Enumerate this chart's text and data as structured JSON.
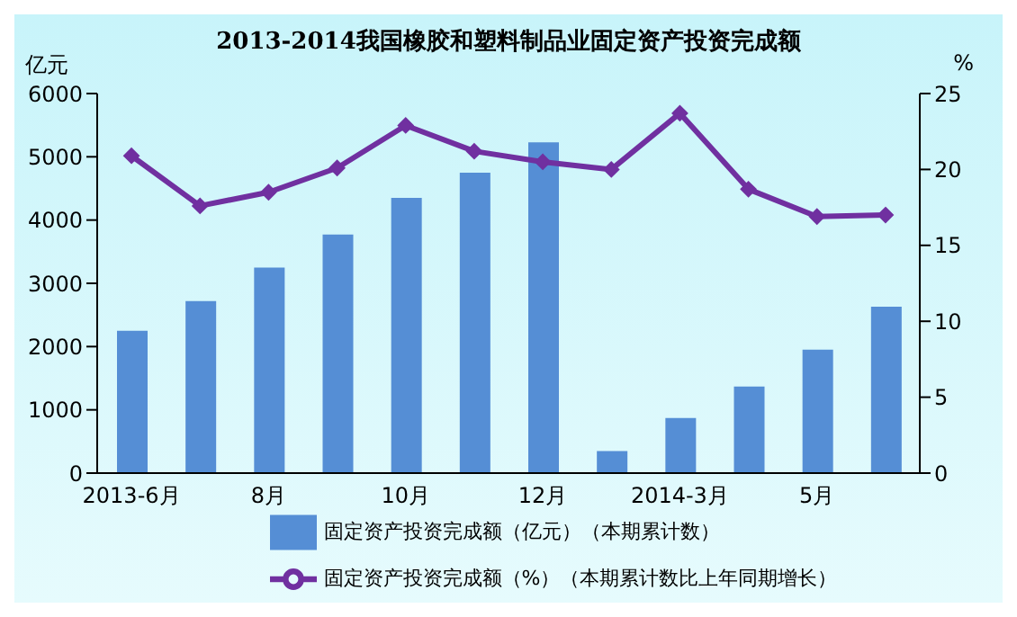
{
  "chart_data": {
    "type": "bar",
    "title": "2013-2014我国橡胶和塑料制品业固定资产投资完成额",
    "ylabel": "亿元",
    "y2label": "%",
    "categories": [
      "2013-6月",
      null,
      "8月",
      null,
      "10月",
      null,
      "12月",
      null,
      "2014-3月",
      null,
      "5月",
      null
    ],
    "series": [
      {
        "name": "固定资产投资完成额（亿元）（本期累计数）",
        "color": "#558ed5",
        "values": [
          2250,
          2720,
          3250,
          3770,
          4350,
          4750,
          5230,
          350,
          870,
          1370,
          1950,
          2630
        ]
      },
      {
        "name": "固定资产投资完成额（%）（本期累计数比上年同期增长）",
        "type": "line",
        "axis": "y2",
        "color": "#7030a0",
        "marker": "diamond",
        "values": [
          20.9,
          17.6,
          18.5,
          20.1,
          22.9,
          21.2,
          20.5,
          20.0,
          23.7,
          18.7,
          16.9,
          17.0
        ]
      }
    ],
    "ylim": [
      0,
      6000
    ],
    "yticks": [
      0,
      1000,
      2000,
      3000,
      4000,
      5000,
      6000
    ],
    "y2lim": [
      0,
      25
    ],
    "y2ticks": [
      0,
      5,
      10,
      15,
      20,
      25
    ],
    "grid": false,
    "legend": "bottom"
  }
}
